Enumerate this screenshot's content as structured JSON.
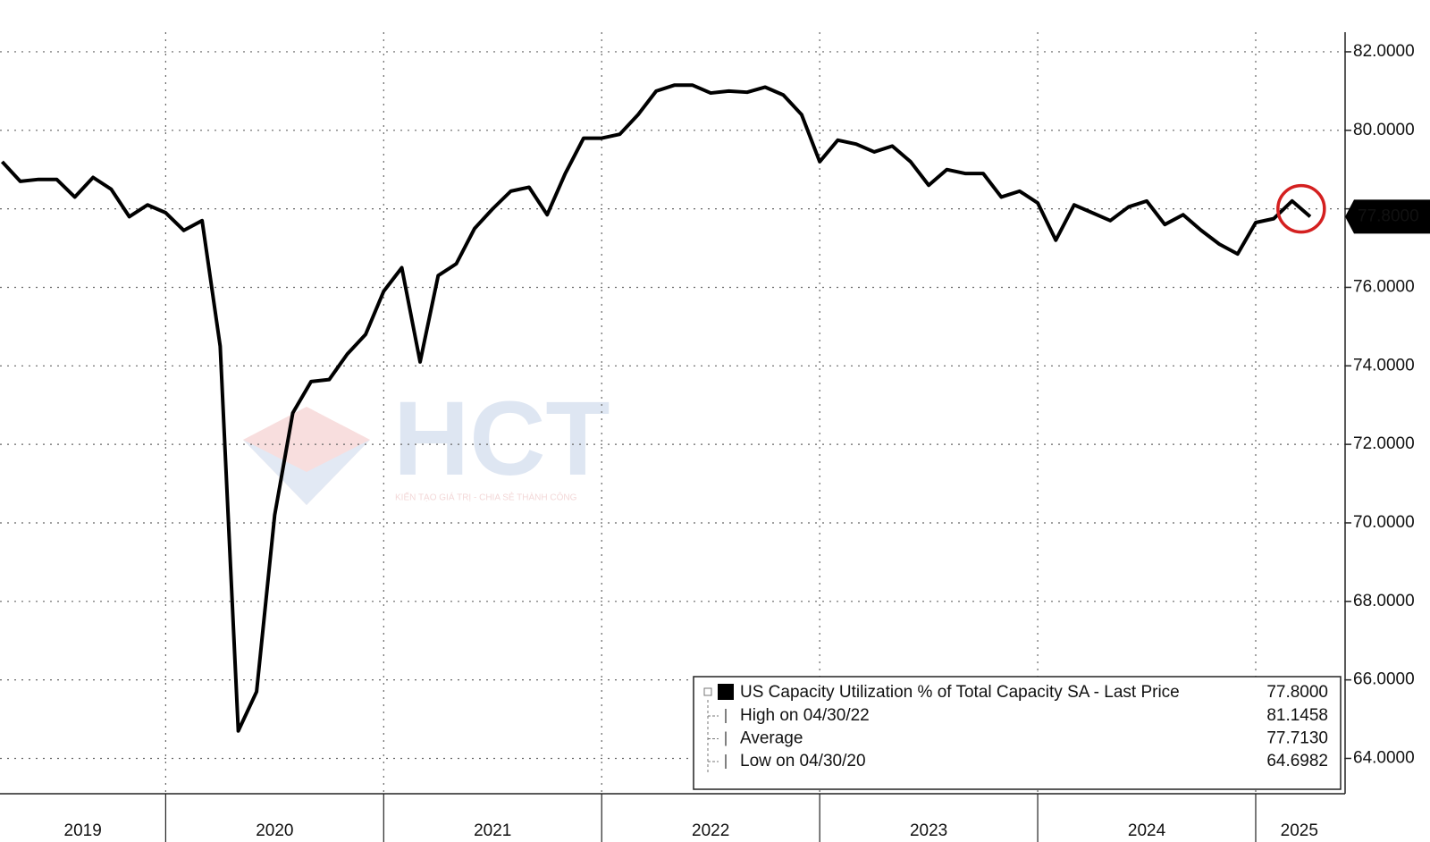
{
  "chart_data": {
    "type": "line",
    "x": [
      2019.25,
      2019.333,
      2019.417,
      2019.5,
      2019.583,
      2019.667,
      2019.75,
      2019.833,
      2019.917,
      2020,
      2020.083,
      2020.167,
      2020.25,
      2020.333,
      2020.417,
      2020.5,
      2020.583,
      2020.667,
      2020.75,
      2020.833,
      2020.917,
      2021,
      2021.083,
      2021.167,
      2021.25,
      2021.333,
      2021.417,
      2021.5,
      2021.583,
      2021.667,
      2021.75,
      2021.833,
      2021.917,
      2022,
      2022.083,
      2022.167,
      2022.25,
      2022.333,
      2022.417,
      2022.5,
      2022.583,
      2022.667,
      2022.75,
      2022.833,
      2022.917,
      2023,
      2023.083,
      2023.167,
      2023.25,
      2023.333,
      2023.417,
      2023.5,
      2023.583,
      2023.667,
      2023.75,
      2023.833,
      2023.917,
      2024,
      2024.083,
      2024.167,
      2024.25,
      2024.333,
      2024.417,
      2024.5,
      2024.583,
      2024.667,
      2024.75,
      2024.833,
      2024.917,
      2025,
      2025.083,
      2025.167,
      2025.25
    ],
    "series": [
      {
        "name": "US Capacity Utilization % of Total Capacity SA - Last Price",
        "color": "#000000",
        "values": [
          79.2,
          78.7,
          78.75,
          78.75,
          78.3,
          78.8,
          78.5,
          77.8,
          78.1,
          77.9,
          77.45,
          77.7,
          74.5,
          64.7,
          65.7,
          70.2,
          72.8,
          73.6,
          73.65,
          74.3,
          74.8,
          75.9,
          76.5,
          74.1,
          76.3,
          76.6,
          77.5,
          78.0,
          78.45,
          78.55,
          77.85,
          78.9,
          79.8,
          79.8,
          79.9,
          80.4,
          81.0,
          81.15,
          81.15,
          80.95,
          81.0,
          80.97,
          81.1,
          80.9,
          80.4,
          79.2,
          79.75,
          79.65,
          79.45,
          79.6,
          79.2,
          78.6,
          79.0,
          78.9,
          78.9,
          78.3,
          78.45,
          78.15,
          77.2,
          78.1,
          77.9,
          77.7,
          78.05,
          78.2,
          77.6,
          77.85,
          77.45,
          77.1,
          76.85,
          77.65,
          77.75,
          78.2,
          77.8
        ]
      }
    ],
    "xlim": [
      2019.24,
      2025.41
    ],
    "ylim": [
      63.1,
      82.5
    ],
    "yticks": [
      {
        "value": 64,
        "label": "64.0000"
      },
      {
        "value": 66,
        "label": "66.0000"
      },
      {
        "value": 68,
        "label": "68.0000"
      },
      {
        "value": 70,
        "label": "70.0000"
      },
      {
        "value": 72,
        "label": "72.0000"
      },
      {
        "value": 74,
        "label": "74.0000"
      },
      {
        "value": 76,
        "label": "76.0000"
      },
      {
        "value": 78,
        "label": "78.0000"
      },
      {
        "value": 80,
        "label": "80.0000"
      },
      {
        "value": 82,
        "label": "82.0000"
      }
    ],
    "xticks": [
      {
        "value": 2019.62,
        "label": "2019"
      },
      {
        "value": 2020.5,
        "label": "2020"
      },
      {
        "value": 2021.5,
        "label": "2021"
      },
      {
        "value": 2022.5,
        "label": "2022"
      },
      {
        "value": 2023.5,
        "label": "2023"
      },
      {
        "value": 2024.5,
        "label": "2024"
      },
      {
        "value": 2025.2,
        "label": "2025"
      }
    ],
    "xgrid": [
      2020,
      2021,
      2022,
      2023,
      2024,
      2025
    ],
    "grid": true,
    "last_price": {
      "value": 77.8,
      "label": "77.8000"
    },
    "legend_stats": [
      {
        "name": "High on 04/30/22",
        "value": "81.1458"
      },
      {
        "name": "Average",
        "value": "77.7130"
      },
      {
        "name": "Low on 04/30/20",
        "value": "64.6982"
      }
    ],
    "watermark": {
      "text": "HCT",
      "tagline": "KIẾN TẠO GIÁ TRỊ - CHIA SẺ THÀNH CÔNG"
    }
  }
}
